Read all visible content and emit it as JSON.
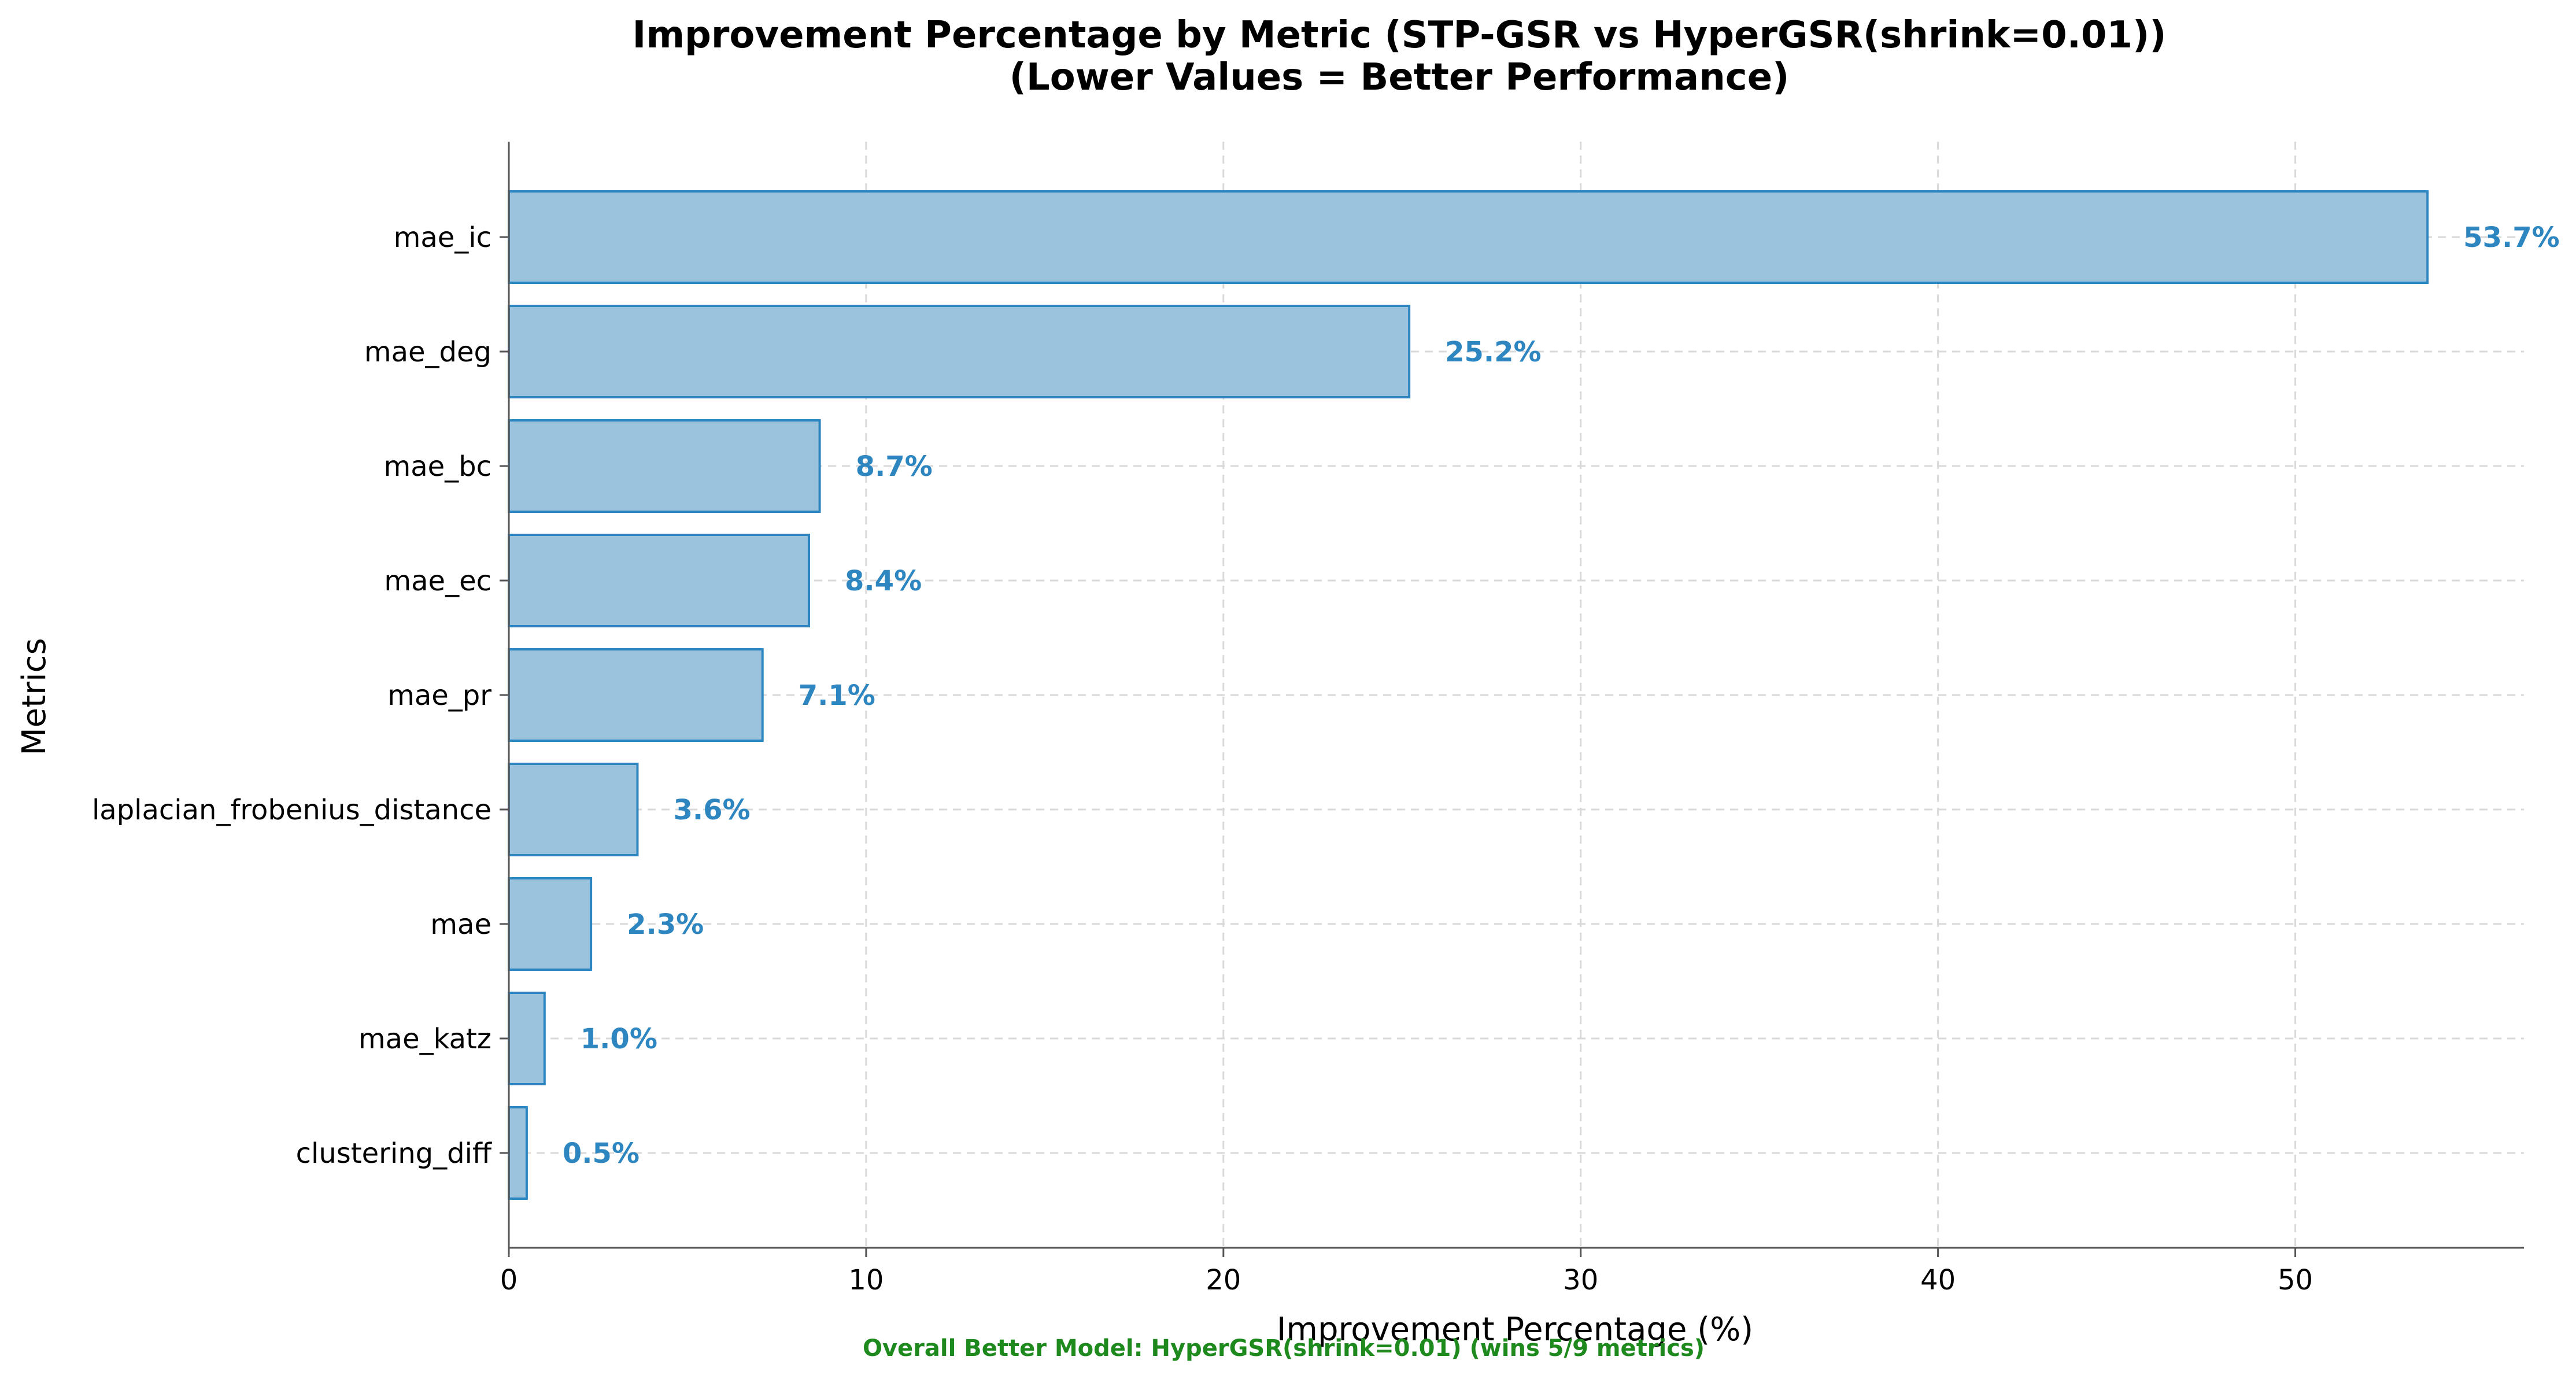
{
  "chart_data": {
    "type": "bar",
    "orientation": "horizontal",
    "title": "Improvement Percentage by Metric (STP-GSR vs HyperGSR(shrink=0.01))",
    "subtitle": "(Lower Values = Better Performance)",
    "xlabel": "Improvement Percentage (%)",
    "ylabel": "Metrics",
    "xlim": [
      0,
      56.4
    ],
    "xticks": [
      "0",
      "10",
      "20",
      "30",
      "40",
      "50"
    ],
    "grid": true,
    "categories": [
      "mae_ic",
      "mae_deg",
      "mae_bc",
      "mae_ec",
      "mae_pr",
      "laplacian_frobenius_distance",
      "mae",
      "mae_katz",
      "clustering_diff"
    ],
    "values": [
      53.7,
      25.2,
      8.7,
      8.4,
      7.1,
      3.6,
      2.3,
      1.0,
      0.5
    ],
    "data_labels": [
      "53.7%",
      "25.2%",
      "8.7%",
      "8.4%",
      "7.1%",
      "3.6%",
      "2.3%",
      "1.0%",
      "0.5%"
    ],
    "footer": "Overall Better Model: HyperGSR(shrink=0.01) (wins 5/9 metrics)"
  },
  "colors": {
    "bar_fill": "#9bc3de",
    "bar_edge": "#2e86c1",
    "data_label": "#2e86c1",
    "grid": "#d9d9d9",
    "axis": "#555555",
    "footer": "#1e8a1e"
  }
}
